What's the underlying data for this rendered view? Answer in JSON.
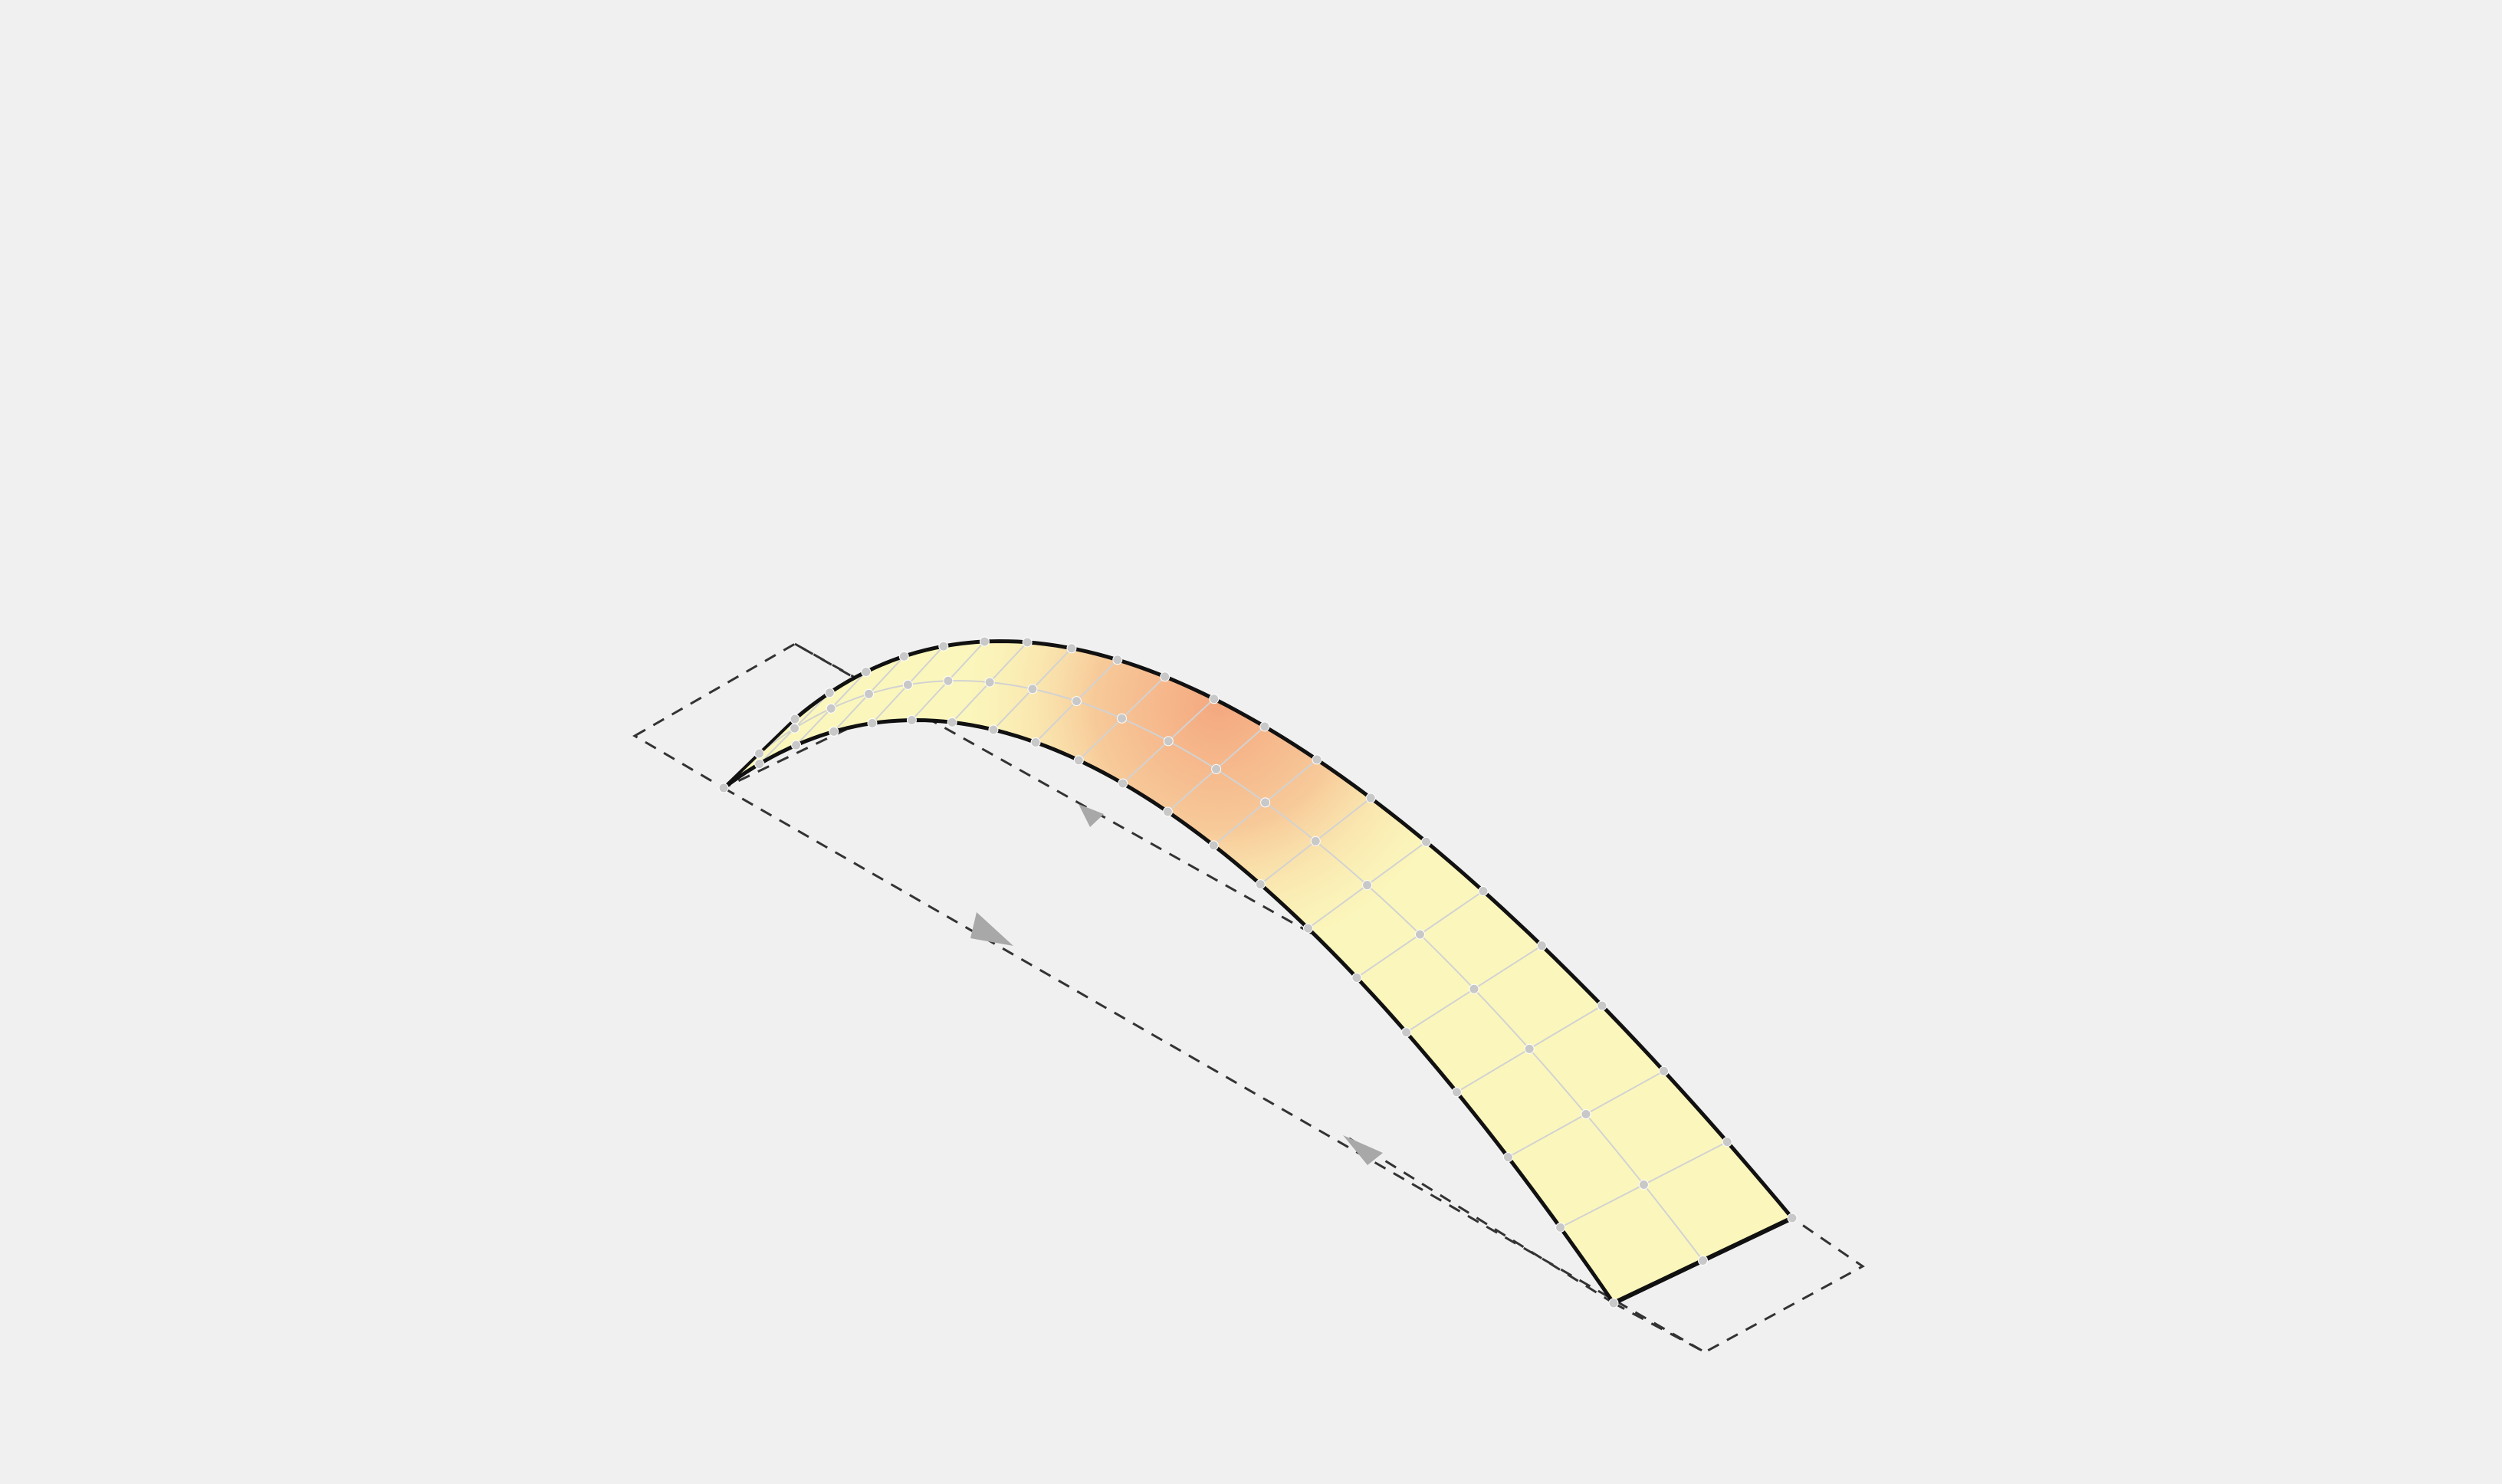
{
  "scene": {
    "type": "3d-surface-viewport",
    "background_color": "#f0f0f0",
    "surface_base_color": "#fbf7bc",
    "surface_highlight_color": "#f4a47c",
    "mesh_line_color": "#d2d2d2",
    "node_color": "#c8c8c8",
    "edge_color": "#111111",
    "support_line_color": "#333333",
    "arrow_color": "#a8a8a8",
    "mesh": {
      "rows": 2,
      "columns": 20,
      "node_marker": "sphere"
    },
    "supports": [
      {
        "name": "left-support-plane",
        "style": "dashed"
      },
      {
        "name": "right-support-plane",
        "style": "dashed"
      }
    ],
    "direction_arrows": [
      {
        "name": "upper-direction-arrow",
        "icon": "triangle-arrow-icon"
      },
      {
        "name": "middle-direction-arrow",
        "icon": "triangle-arrow-icon"
      },
      {
        "name": "lower-direction-arrow",
        "icon": "triangle-arrow-icon"
      }
    ]
  }
}
